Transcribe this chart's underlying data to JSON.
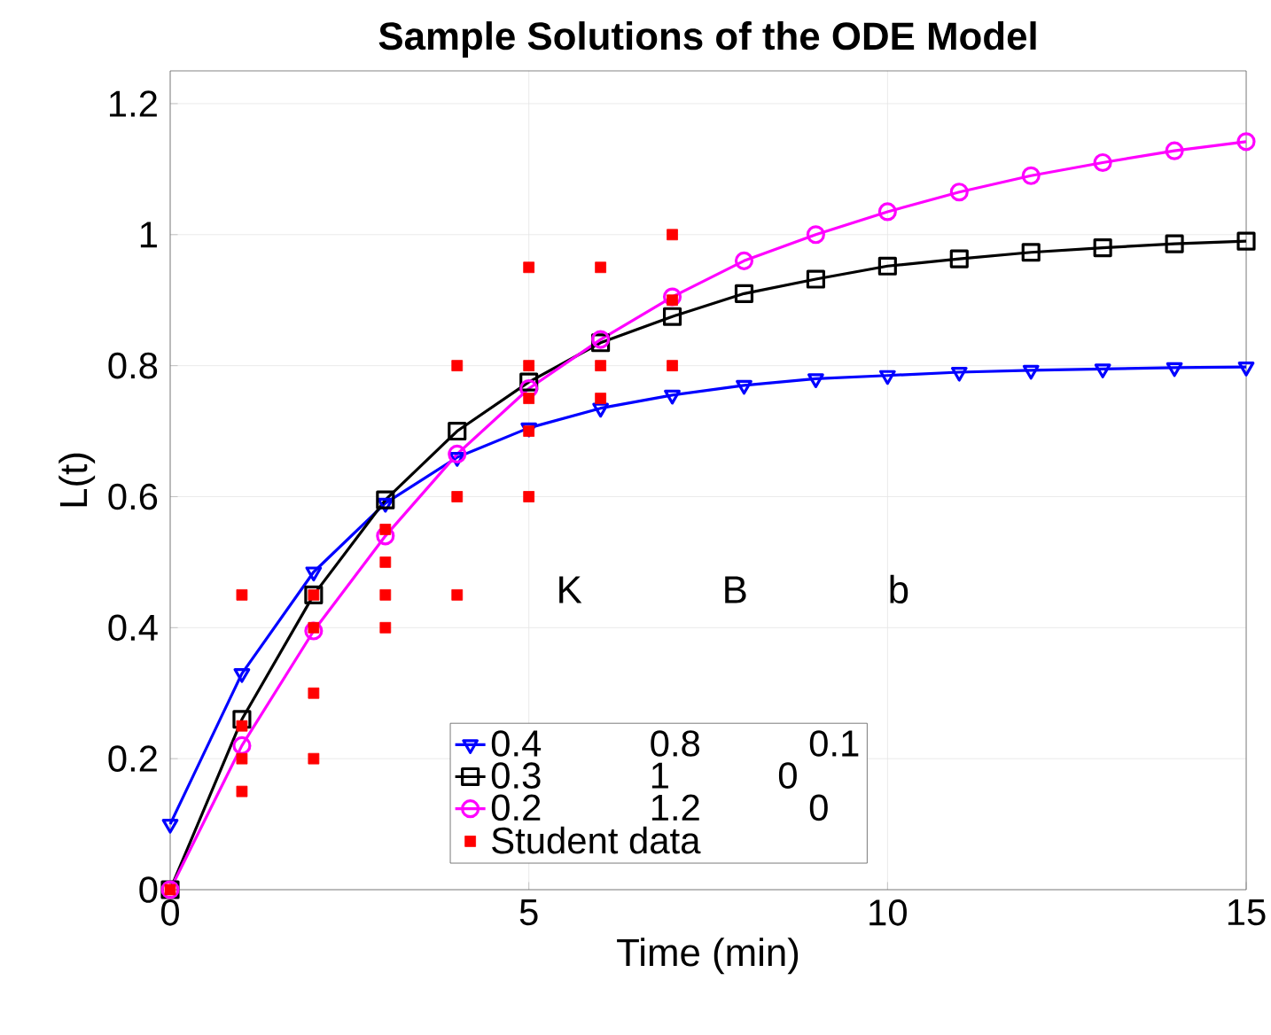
{
  "chart_data": {
    "type": "line",
    "title": "Sample Solutions of the ODE Model",
    "xlabel": "Time (min)",
    "ylabel": "L(t)",
    "legend_title": "K B b",
    "series": [
      {
        "name": "0.4 0.8 0.1",
        "color": "#0000ff",
        "marker": "triangle",
        "x": [
          0,
          1,
          2,
          3,
          4,
          5,
          6,
          7,
          8,
          9,
          10,
          11,
          12,
          13,
          14,
          15
        ],
        "values": [
          0.1,
          0.33,
          0.485,
          0.59,
          0.66,
          0.705,
          0.735,
          0.755,
          0.77,
          0.78,
          0.785,
          0.79,
          0.793,
          0.795,
          0.797,
          0.798
        ]
      },
      {
        "name": "0.3 1 0",
        "color": "#000000",
        "marker": "square",
        "x": [
          0,
          1,
          2,
          3,
          4,
          5,
          6,
          7,
          8,
          9,
          10,
          11,
          12,
          13,
          14,
          15
        ],
        "values": [
          0,
          0.26,
          0.45,
          0.595,
          0.7,
          0.775,
          0.835,
          0.875,
          0.91,
          0.932,
          0.952,
          0.963,
          0.973,
          0.98,
          0.986,
          0.99
        ]
      },
      {
        "name": "0.2 1.2 0",
        "color": "#ff00ff",
        "marker": "circle",
        "x": [
          0,
          1,
          2,
          3,
          4,
          5,
          6,
          7,
          8,
          9,
          10,
          11,
          12,
          13,
          14,
          15
        ],
        "values": [
          0,
          0.22,
          0.395,
          0.54,
          0.665,
          0.765,
          0.84,
          0.905,
          0.96,
          1.0,
          1.035,
          1.065,
          1.09,
          1.11,
          1.128,
          1.142
        ]
      },
      {
        "name": "Student data",
        "type": "scatter",
        "color": "#ff0000",
        "marker": "square",
        "x": [
          0,
          1,
          1,
          1,
          1,
          2,
          2,
          2,
          2,
          3,
          3,
          3,
          3,
          4,
          4,
          4,
          5,
          5,
          5,
          5,
          5,
          6,
          6,
          6,
          7,
          7,
          7
        ],
        "values": [
          0,
          0.45,
          0.25,
          0.2,
          0.15,
          0.45,
          0.4,
          0.3,
          0.2,
          0.55,
          0.5,
          0.45,
          0.4,
          0.8,
          0.6,
          0.45,
          0.95,
          0.8,
          0.75,
          0.7,
          0.6,
          0.95,
          0.8,
          0.75,
          1.0,
          0.9,
          0.8
        ]
      }
    ],
    "xlim": [
      0,
      15
    ],
    "ylim": [
      0,
      1.25
    ],
    "xticks": [
      0,
      5,
      10,
      15
    ],
    "yticks": [
      0,
      0.2,
      0.4,
      0.6,
      0.8,
      1,
      1.2
    ],
    "grid": true,
    "legend": "bottom"
  }
}
